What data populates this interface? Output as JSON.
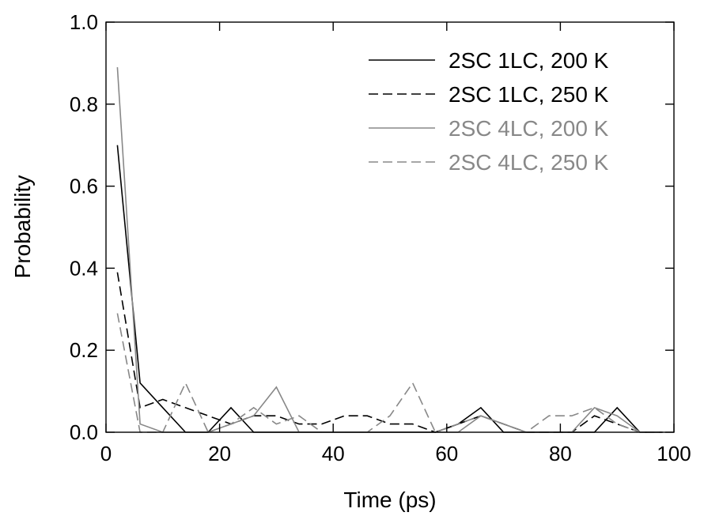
{
  "chart_data": {
    "type": "line",
    "title": "",
    "xlabel": "Time (ps)",
    "ylabel": "Probability",
    "xlim": [
      0,
      100
    ],
    "ylim": [
      0,
      1.0
    ],
    "xticks": [
      0,
      20,
      40,
      60,
      80,
      100
    ],
    "yticks": [
      0.0,
      0.2,
      0.4,
      0.6,
      0.8,
      1.0
    ],
    "xtick_labels": [
      "0",
      "20",
      "40",
      "60",
      "80",
      "100"
    ],
    "ytick_labels": [
      "0.0",
      "0.2",
      "0.4",
      "0.6",
      "0.8",
      "1.0"
    ],
    "grid": false,
    "legend_position": "top-right",
    "x": [
      2,
      6,
      10,
      14,
      18,
      22,
      26,
      30,
      34,
      38,
      42,
      46,
      50,
      54,
      58,
      62,
      66,
      70,
      74,
      78,
      82,
      86,
      90,
      94,
      98
    ],
    "series": [
      {
        "name": "2SC 1LC, 200 K",
        "color": "#000000",
        "dash": "solid",
        "values": [
          0.7,
          0.12,
          0.06,
          0.0,
          0.0,
          0.06,
          0.0,
          0.0,
          0.0,
          0.0,
          0.0,
          0.0,
          0.0,
          0.0,
          0.0,
          0.02,
          0.06,
          0.0,
          0.0,
          0.0,
          0.0,
          0.0,
          0.06,
          0.0,
          0.0
        ]
      },
      {
        "name": "2SC 1LC, 250 K",
        "color": "#000000",
        "dash": "dashed",
        "values": [
          0.39,
          0.06,
          0.08,
          0.06,
          0.04,
          0.02,
          0.04,
          0.04,
          0.02,
          0.02,
          0.04,
          0.04,
          0.02,
          0.02,
          0.0,
          0.02,
          0.04,
          0.02,
          0.0,
          0.0,
          0.0,
          0.04,
          0.02,
          0.0,
          0.0
        ]
      },
      {
        "name": "2SC 4LC, 200 K",
        "color": "#888888",
        "dash": "solid",
        "values": [
          0.89,
          0.02,
          0.0,
          0.0,
          0.0,
          0.02,
          0.04,
          0.11,
          0.0,
          0.0,
          0.0,
          0.0,
          0.0,
          0.0,
          0.0,
          0.0,
          0.04,
          0.02,
          0.0,
          0.0,
          0.0,
          0.06,
          0.04,
          0.0,
          0.0
        ]
      },
      {
        "name": "2SC 4LC, 250 K",
        "color": "#888888",
        "dash": "dashed",
        "values": [
          0.29,
          0.0,
          0.0,
          0.12,
          0.0,
          0.02,
          0.06,
          0.02,
          0.04,
          0.0,
          0.0,
          0.0,
          0.04,
          0.12,
          0.0,
          0.02,
          0.04,
          0.02,
          0.0,
          0.04,
          0.04,
          0.06,
          0.02,
          0.0,
          0.0
        ]
      }
    ]
  }
}
